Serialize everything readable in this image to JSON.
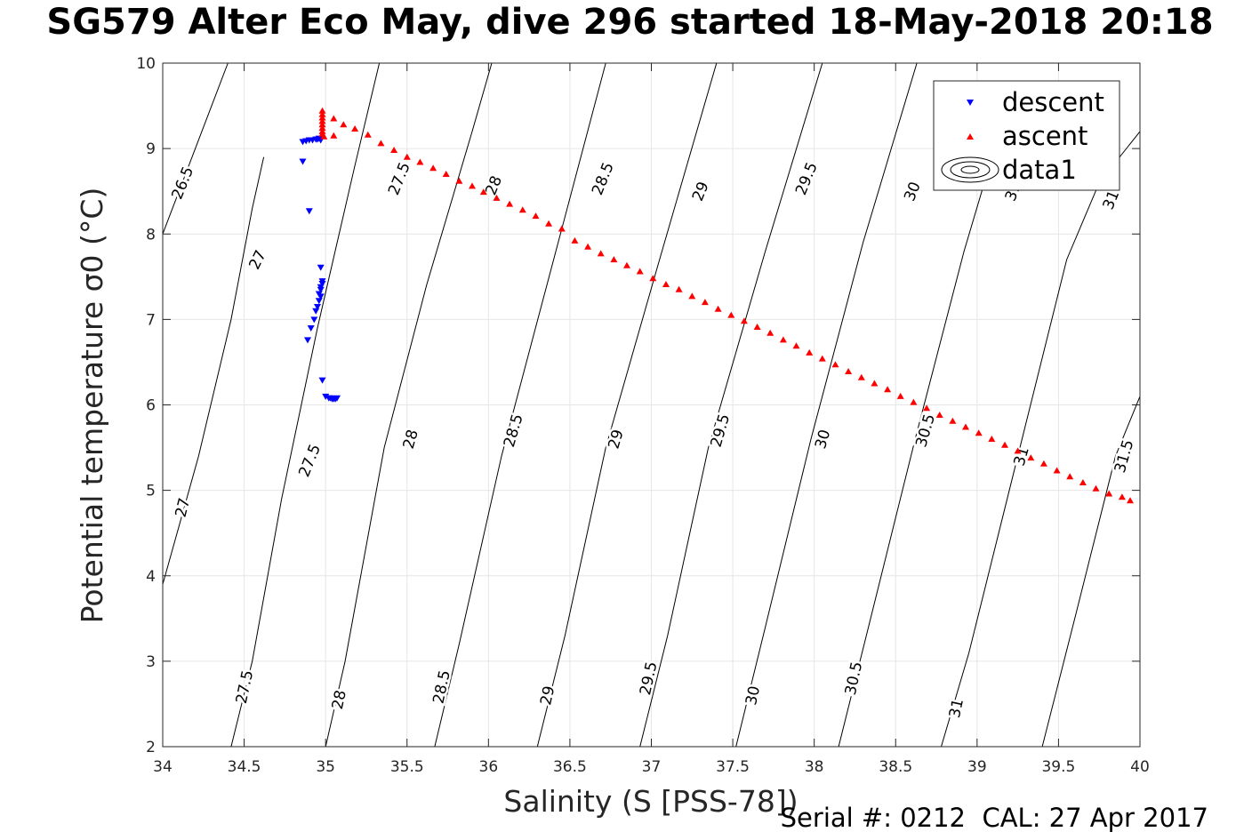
{
  "title": "SG579 Alter Eco May, dive 296 started 18-May-2018 20:18",
  "footer": "Serial #: 0212  CAL: 27 Apr 2017",
  "colors": {
    "descent": "#0000ff",
    "ascent": "#ff0000",
    "contour": "#000000",
    "grid": "#e6e6e6"
  },
  "chart_data": {
    "type": "scatter",
    "xlabel": "Salinity (S [PSS-78])",
    "ylabel": "Potential temperature σ0 (°C)",
    "xlim": [
      34,
      40
    ],
    "ylim": [
      2,
      10
    ],
    "xticks": [
      "34",
      "34.5",
      "35",
      "35.5",
      "36",
      "36.5",
      "37",
      "37.5",
      "38",
      "38.5",
      "39",
      "39.5",
      "40"
    ],
    "yticks": [
      "2",
      "3",
      "4",
      "5",
      "6",
      "7",
      "8",
      "9",
      "10"
    ],
    "grid": true,
    "legend_position": "top-right",
    "legend": [
      "descent",
      "ascent",
      "data1"
    ],
    "contours": {
      "levels": [
        26.5,
        27,
        27.5,
        28,
        28.5,
        29,
        29.5,
        30,
        30.5,
        31,
        31.5
      ],
      "lines": [
        {
          "level": 26.5,
          "points": [
            [
              33.92,
              7.6
            ],
            [
              34.4,
              10.0
            ]
          ]
        },
        {
          "level": 27,
          "points": [
            [
              34.0,
              3.9
            ],
            [
              34.22,
              5.4
            ],
            [
              34.42,
              7.0
            ],
            [
              34.55,
              8.3
            ],
            [
              34.62,
              8.9
            ]
          ]
        },
        {
          "level": 27.5,
          "points": [
            [
              34.42,
              2.0
            ],
            [
              34.55,
              3.0
            ],
            [
              34.73,
              4.9
            ],
            [
              34.95,
              6.9
            ],
            [
              35.18,
              8.8
            ],
            [
              35.33,
              10.0
            ]
          ]
        },
        {
          "level": 28,
          "points": [
            [
              35.0,
              2.0
            ],
            [
              35.12,
              3.0
            ],
            [
              35.36,
              5.5
            ],
            [
              35.62,
              7.4
            ],
            [
              35.9,
              9.2
            ],
            [
              36.02,
              10.0
            ]
          ]
        },
        {
          "level": 28.5,
          "points": [
            [
              35.67,
              2.0
            ],
            [
              35.82,
              3.2
            ],
            [
              36.08,
              5.4
            ],
            [
              36.4,
              7.7
            ],
            [
              36.72,
              10.0
            ]
          ]
        },
        {
          "level": 29,
          "points": [
            [
              36.3,
              2.0
            ],
            [
              36.47,
              3.3
            ],
            [
              36.72,
              5.5
            ],
            [
              37.05,
              7.7
            ],
            [
              37.4,
              10.0
            ]
          ]
        },
        {
          "level": 29.5,
          "points": [
            [
              36.93,
              2.0
            ],
            [
              37.1,
              3.3
            ],
            [
              37.35,
              5.5
            ],
            [
              37.7,
              7.8
            ],
            [
              38.05,
              10.0
            ]
          ]
        },
        {
          "level": 30,
          "points": [
            [
              37.52,
              2.0
            ],
            [
              37.7,
              3.4
            ],
            [
              37.98,
              5.6
            ],
            [
              38.3,
              7.9
            ],
            [
              38.63,
              10.0
            ]
          ]
        },
        {
          "level": 30.5,
          "points": [
            [
              38.15,
              2.0
            ],
            [
              38.32,
              3.3
            ],
            [
              38.62,
              5.6
            ],
            [
              38.92,
              7.8
            ],
            [
              39.2,
              9.6
            ]
          ]
        },
        {
          "level": 31,
          "points": [
            [
              38.78,
              2.0
            ],
            [
              38.95,
              3.1
            ],
            [
              39.25,
              5.4
            ],
            [
              39.55,
              7.7
            ],
            [
              39.75,
              8.6
            ],
            [
              40.0,
              9.2
            ]
          ]
        },
        {
          "level": 31.5,
          "points": [
            [
              39.4,
              2.0
            ],
            [
              39.6,
              3.5
            ],
            [
              39.85,
              5.4
            ],
            [
              40.0,
              6.1
            ]
          ]
        }
      ],
      "labels": [
        {
          "text": "26.5",
          "x": 34.12,
          "y": 8.6,
          "angle": -68
        },
        {
          "text": "27",
          "x": 34.58,
          "y": 7.7,
          "angle": -64
        },
        {
          "text": "27",
          "x": 34.12,
          "y": 4.8,
          "angle": -76
        },
        {
          "text": "27.5",
          "x": 35.45,
          "y": 8.65,
          "angle": -68
        },
        {
          "text": "27.5",
          "x": 34.9,
          "y": 5.35,
          "angle": -68
        },
        {
          "text": "27.5",
          "x": 34.5,
          "y": 2.7,
          "angle": -78
        },
        {
          "text": "28",
          "x": 36.03,
          "y": 8.57,
          "angle": -68
        },
        {
          "text": "28",
          "x": 35.52,
          "y": 5.6,
          "angle": -74
        },
        {
          "text": "28",
          "x": 35.08,
          "y": 2.55,
          "angle": -78
        },
        {
          "text": "28.5",
          "x": 36.7,
          "y": 8.65,
          "angle": -68
        },
        {
          "text": "28.5",
          "x": 36.15,
          "y": 5.7,
          "angle": -74
        },
        {
          "text": "28.5",
          "x": 35.71,
          "y": 2.7,
          "angle": -78
        },
        {
          "text": "29",
          "x": 37.3,
          "y": 8.5,
          "angle": -68
        },
        {
          "text": "29",
          "x": 36.78,
          "y": 5.6,
          "angle": -74
        },
        {
          "text": "29",
          "x": 36.36,
          "y": 2.6,
          "angle": -78
        },
        {
          "text": "29.5",
          "x": 37.95,
          "y": 8.65,
          "angle": -68
        },
        {
          "text": "29.5",
          "x": 37.42,
          "y": 5.7,
          "angle": -74
        },
        {
          "text": "29.5",
          "x": 36.98,
          "y": 2.8,
          "angle": -78
        },
        {
          "text": "30",
          "x": 38.6,
          "y": 8.5,
          "angle": -68
        },
        {
          "text": "30",
          "x": 38.05,
          "y": 5.6,
          "angle": -74
        },
        {
          "text": "30",
          "x": 37.62,
          "y": 2.6,
          "angle": -78
        },
        {
          "text": "30.5",
          "x": 38.68,
          "y": 5.7,
          "angle": -74
        },
        {
          "text": "30.5",
          "x": 38.24,
          "y": 2.8,
          "angle": -78
        },
        {
          "text": "31",
          "x": 39.22,
          "y": 8.5,
          "angle": -68
        },
        {
          "text": "31",
          "x": 39.27,
          "y": 5.4,
          "angle": -74
        },
        {
          "text": "31",
          "x": 38.87,
          "y": 2.45,
          "angle": -78
        },
        {
          "text": "31",
          "x": 39.82,
          "y": 8.4,
          "angle": -68
        },
        {
          "text": "31.5",
          "x": 39.9,
          "y": 5.4,
          "angle": -74
        }
      ]
    },
    "series": [
      {
        "name": "descent",
        "marker": "triangle-down",
        "color": "#0000ff",
        "points": [
          [
            34.86,
            9.08
          ],
          [
            34.88,
            9.09
          ],
          [
            34.9,
            9.1
          ],
          [
            34.92,
            9.1
          ],
          [
            34.94,
            9.11
          ],
          [
            34.95,
            9.11
          ],
          [
            34.96,
            9.12
          ],
          [
            34.97,
            9.1
          ],
          [
            34.86,
            8.85
          ],
          [
            34.9,
            8.27
          ],
          [
            34.97,
            7.61
          ],
          [
            34.98,
            7.45
          ],
          [
            34.98,
            7.42
          ],
          [
            34.97,
            7.38
          ],
          [
            34.97,
            7.35
          ],
          [
            34.96,
            7.3
          ],
          [
            34.97,
            7.27
          ],
          [
            34.96,
            7.22
          ],
          [
            34.95,
            7.15
          ],
          [
            34.94,
            7.1
          ],
          [
            34.93,
            7.0
          ],
          [
            34.91,
            6.9
          ],
          [
            34.89,
            6.76
          ],
          [
            34.98,
            6.29
          ],
          [
            35.0,
            6.1
          ],
          [
            35.02,
            6.08
          ],
          [
            35.03,
            6.08
          ],
          [
            35.04,
            6.07
          ],
          [
            35.05,
            6.07
          ],
          [
            35.06,
            6.07
          ],
          [
            35.07,
            6.08
          ]
        ]
      },
      {
        "name": "ascent",
        "marker": "triangle-up",
        "color": "#ff0000",
        "points": [
          [
            34.98,
            9.44
          ],
          [
            34.98,
            9.4
          ],
          [
            34.98,
            9.36
          ],
          [
            34.98,
            9.32
          ],
          [
            34.98,
            9.28
          ],
          [
            34.98,
            9.24
          ],
          [
            34.98,
            9.2
          ],
          [
            34.98,
            9.17
          ],
          [
            34.99,
            9.14
          ],
          [
            35.05,
            9.15
          ],
          [
            35.05,
            9.35
          ],
          [
            35.11,
            9.28
          ],
          [
            35.18,
            9.23
          ],
          [
            35.26,
            9.16
          ],
          [
            35.34,
            9.06
          ],
          [
            35.42,
            8.98
          ],
          [
            35.5,
            8.9
          ],
          [
            35.58,
            8.84
          ],
          [
            35.66,
            8.77
          ],
          [
            35.74,
            8.7
          ],
          [
            35.82,
            8.62
          ],
          [
            35.9,
            8.56
          ],
          [
            35.97,
            8.49
          ],
          [
            36.05,
            8.42
          ],
          [
            36.13,
            8.35
          ],
          [
            36.21,
            8.28
          ],
          [
            36.29,
            8.21
          ],
          [
            36.37,
            8.12
          ],
          [
            36.45,
            8.06
          ],
          [
            36.53,
            7.92
          ],
          [
            36.61,
            7.85
          ],
          [
            36.69,
            7.77
          ],
          [
            36.77,
            7.7
          ],
          [
            36.85,
            7.63
          ],
          [
            36.93,
            7.56
          ],
          [
            37.01,
            7.48
          ],
          [
            37.09,
            7.41
          ],
          [
            37.17,
            7.35
          ],
          [
            37.25,
            7.27
          ],
          [
            37.33,
            7.2
          ],
          [
            37.41,
            7.12
          ],
          [
            37.49,
            7.05
          ],
          [
            37.57,
            6.98
          ],
          [
            37.65,
            6.91
          ],
          [
            37.73,
            6.84
          ],
          [
            37.81,
            6.76
          ],
          [
            37.89,
            6.69
          ],
          [
            37.97,
            6.61
          ],
          [
            38.05,
            6.54
          ],
          [
            38.13,
            6.47
          ],
          [
            38.21,
            6.39
          ],
          [
            38.29,
            6.32
          ],
          [
            38.37,
            6.25
          ],
          [
            38.45,
            6.18
          ],
          [
            38.53,
            6.1
          ],
          [
            38.61,
            6.03
          ],
          [
            38.69,
            5.96
          ],
          [
            38.77,
            5.88
          ],
          [
            38.85,
            5.81
          ],
          [
            38.93,
            5.74
          ],
          [
            39.01,
            5.67
          ],
          [
            39.09,
            5.6
          ],
          [
            39.17,
            5.53
          ],
          [
            39.25,
            5.46
          ],
          [
            39.33,
            5.38
          ],
          [
            39.41,
            5.31
          ],
          [
            39.49,
            5.23
          ],
          [
            39.57,
            5.16
          ],
          [
            39.65,
            5.09
          ],
          [
            39.73,
            5.02
          ],
          [
            39.81,
            4.96
          ],
          [
            39.89,
            4.92
          ],
          [
            39.94,
            4.88
          ]
        ]
      }
    ]
  }
}
